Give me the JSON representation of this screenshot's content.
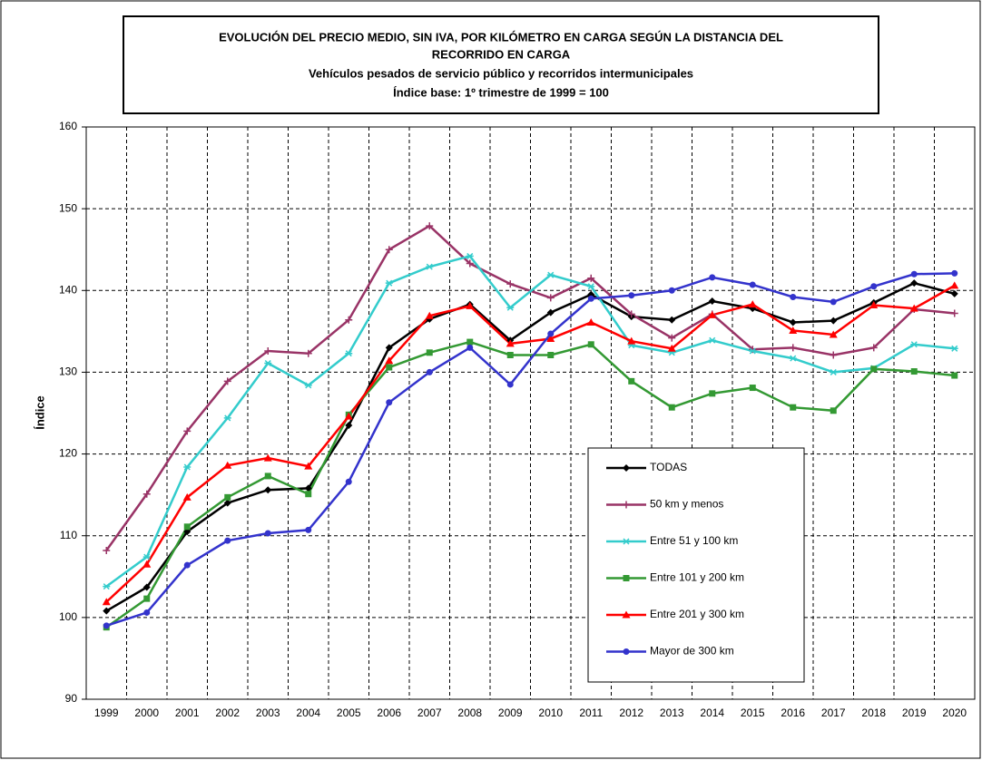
{
  "chart_data": {
    "type": "line",
    "title": [
      "EVOLUCIÓN DEL PRECIO MEDIO, SIN IVA, POR KILÓMETRO EN CARGA SEGÚN LA DISTANCIA DEL",
      "RECORRIDO EN CARGA"
    ],
    "subtitle": [
      "Vehículos pesados de servicio público y recorridos intermunicipales",
      "Índice base: 1º trimestre de 1999 = 100"
    ],
    "y_label": "Índice",
    "categories": [
      "1999",
      "2000",
      "2001",
      "2002",
      "2003",
      "2004",
      "2005",
      "2006",
      "2007",
      "2008",
      "2009",
      "2010",
      "2011",
      "2012",
      "2013",
      "2014",
      "2015",
      "2016",
      "2017",
      "2018",
      "2019",
      "2020"
    ],
    "ylim": [
      90,
      160
    ],
    "yticks": [
      90,
      100,
      110,
      120,
      130,
      140,
      150,
      160
    ],
    "grid": true,
    "series": [
      {
        "name": "TODAS",
        "color": "#000000",
        "marker": "diamond",
        "values": [
          100.8,
          103.7,
          110.5,
          114,
          115.6,
          115.8,
          123.5,
          133,
          136.5,
          138.3,
          133.9,
          137.3,
          139.5,
          136.8,
          136.4,
          138.7,
          137.8,
          136.1,
          136.3,
          138.5,
          140.9,
          139.6
        ]
      },
      {
        "name": "50 km y menos",
        "color": "#993366",
        "marker": "plus",
        "values": [
          108.2,
          115.1,
          122.8,
          128.9,
          132.6,
          132.3,
          136.4,
          145,
          147.9,
          143.3,
          140.8,
          139.1,
          141.5,
          137.1,
          134.2,
          137.1,
          132.8,
          133,
          132.1,
          133,
          137.7,
          137.2
        ]
      },
      {
        "name": "Entre 51 y 100 km",
        "color": "#33cccc",
        "marker": "star",
        "values": [
          103.8,
          107.4,
          118.4,
          124.4,
          131.1,
          128.4,
          132.3,
          140.9,
          142.9,
          144.2,
          137.9,
          141.9,
          140.5,
          133.3,
          132.4,
          133.9,
          132.6,
          131.7,
          130,
          130.5,
          133.4,
          132.9
        ]
      },
      {
        "name": "Entre 101 y 200 km",
        "color": "#339933",
        "marker": "square",
        "values": [
          98.8,
          102.3,
          111.1,
          114.7,
          117.3,
          115.1,
          124.8,
          130.6,
          132.4,
          133.7,
          132.1,
          132.1,
          133.4,
          128.9,
          125.7,
          127.4,
          128.1,
          125.7,
          125.3,
          130.4,
          130.1,
          129.6
        ]
      },
      {
        "name": "Entre 201 y 300 km",
        "color": "#ff0000",
        "marker": "triangle",
        "values": [
          101.9,
          106.5,
          114.7,
          118.6,
          119.5,
          118.5,
          124.6,
          131.4,
          136.9,
          138.1,
          133.5,
          134.1,
          136.1,
          133.8,
          132.9,
          137,
          138.3,
          135.1,
          134.6,
          138.2,
          137.8,
          140.6
        ]
      },
      {
        "name": "Mayor de 300 km",
        "color": "#3333cc",
        "marker": "circle",
        "values": [
          99,
          100.6,
          106.4,
          109.4,
          110.3,
          110.7,
          116.6,
          126.3,
          130,
          133,
          128.5,
          134.7,
          139,
          139.4,
          140,
          141.6,
          140.7,
          139.2,
          138.6,
          140.5,
          142,
          142.1
        ]
      }
    ]
  }
}
